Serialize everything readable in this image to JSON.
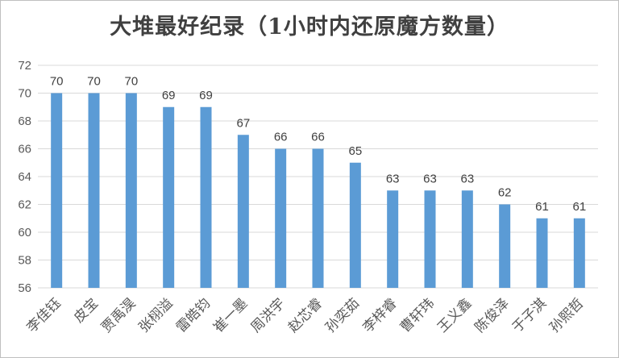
{
  "chart_data": {
    "type": "bar",
    "title": "大堆最好纪录（1小时内还原魔方数量）",
    "categories": [
      "李佳钰",
      "皮宝",
      "贾禹淏",
      "张栩溢",
      "雷皓钧",
      "崔一墨",
      "周洪宇",
      "赵芯睿",
      "孙奕茹",
      "李梓睿",
      "曹轩玮",
      "王义鑫",
      "陈俊泽",
      "于子淇",
      "孙熙哲"
    ],
    "values": [
      70,
      70,
      70,
      69,
      69,
      67,
      66,
      66,
      65,
      63,
      63,
      63,
      62,
      61,
      61
    ],
    "ylim": [
      56,
      72
    ],
    "yticks": [
      56,
      58,
      60,
      62,
      64,
      66,
      68,
      70,
      72
    ],
    "grid": true,
    "bar_color": "#5b9bd5",
    "grid_color": "#d9d9d9"
  }
}
